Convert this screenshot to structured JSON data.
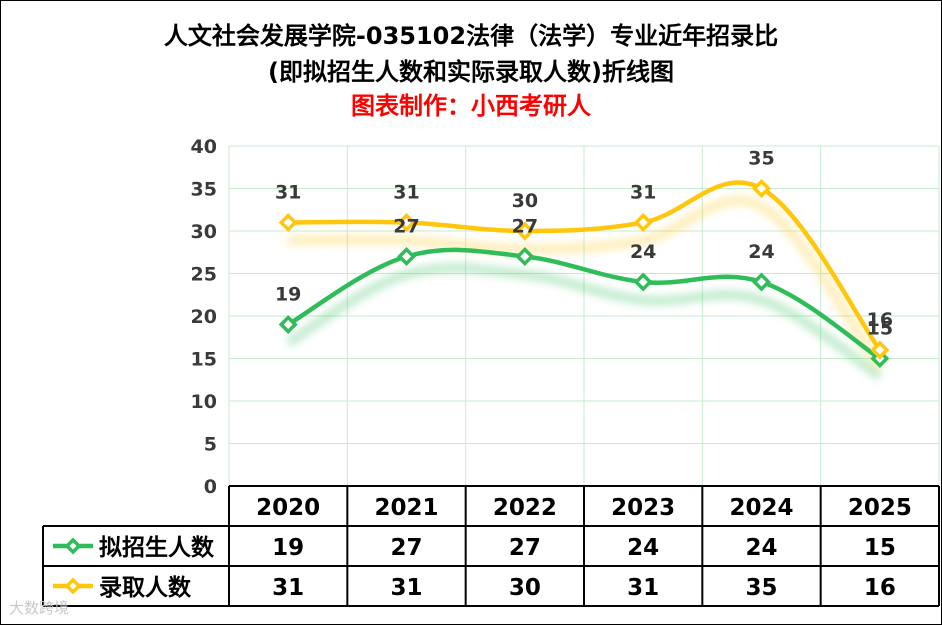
{
  "titles": {
    "line1": "人文社会发展学院-035102法律（法学）专业近年招录比",
    "line2": "(即拟招生人数和实际录取人数)折线图",
    "credit": "图表制作：小西考研人"
  },
  "watermark": "大数跨境",
  "colors": {
    "green": "#2EBD59",
    "yellow": "#FFC60B",
    "grid": "#C6EBCF",
    "axis_text": "#3a3a3a"
  },
  "chart_data": {
    "type": "line",
    "smooth": true,
    "categories": [
      "2020",
      "2021",
      "2022",
      "2023",
      "2024",
      "2025"
    ],
    "ylim": [
      0,
      40
    ],
    "yticks": [
      0,
      5,
      10,
      15,
      20,
      25,
      30,
      35,
      40
    ],
    "grid": true,
    "legend": "data-table-left",
    "series": [
      {
        "name": "拟招生人数",
        "values": [
          19,
          27,
          27,
          24,
          24,
          15
        ],
        "color": "#2EBD59"
      },
      {
        "name": "录取人数",
        "values": [
          31,
          31,
          30,
          31,
          35,
          16
        ],
        "color": "#FFC60B"
      }
    ]
  }
}
